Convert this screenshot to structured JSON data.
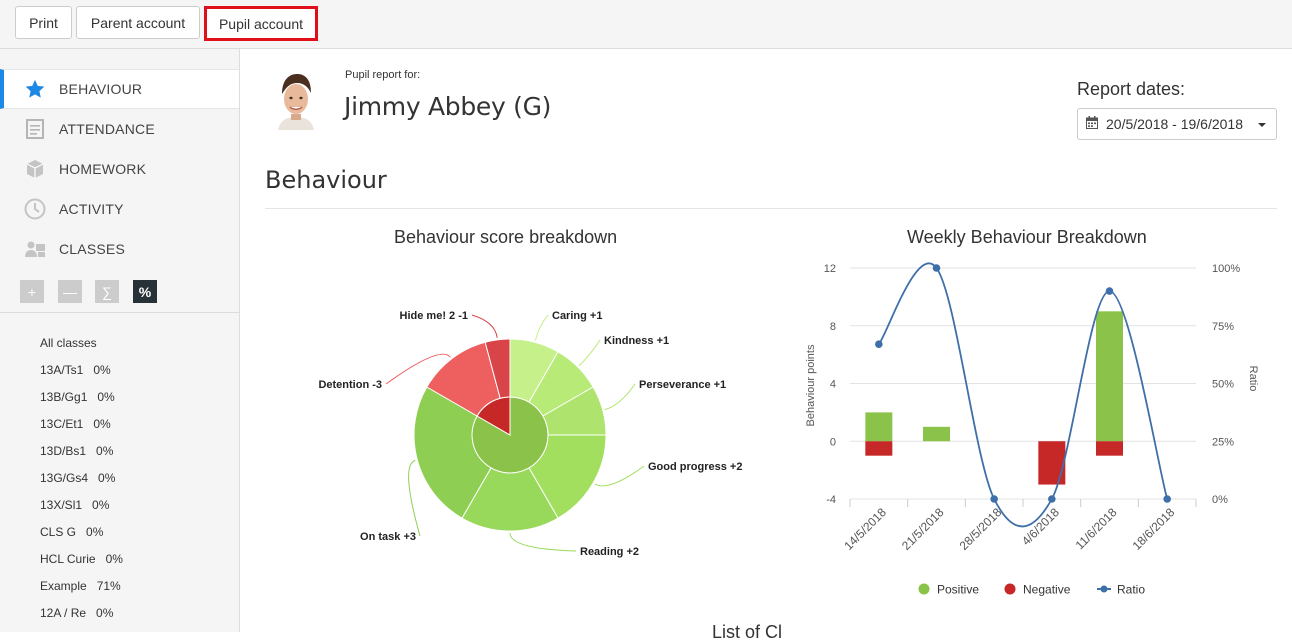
{
  "toolbar": {
    "print_label": "Print",
    "parent_label": "Parent account",
    "pupil_label": "Pupil account"
  },
  "sidebar": {
    "items": [
      {
        "label": "BEHAVIOUR",
        "icon": "star-icon",
        "active": true
      },
      {
        "label": "ATTENDANCE",
        "icon": "document-icon",
        "active": false
      },
      {
        "label": "HOMEWORK",
        "icon": "box-icon",
        "active": false
      },
      {
        "label": "ACTIVITY",
        "icon": "clock-icon",
        "active": false
      },
      {
        "label": "CLASSES",
        "icon": "people-icon",
        "active": false
      }
    ],
    "tools": [
      "+",
      "—",
      "∑",
      "%"
    ],
    "classes": [
      {
        "name": "All classes",
        "pct": ""
      },
      {
        "name": "13A/Ts1",
        "pct": "0%"
      },
      {
        "name": "13B/Gg1",
        "pct": "0%"
      },
      {
        "name": "13C/Et1",
        "pct": "0%"
      },
      {
        "name": "13D/Bs1",
        "pct": "0%"
      },
      {
        "name": "13G/Gs4",
        "pct": "0%"
      },
      {
        "name": "13X/Sl1",
        "pct": "0%"
      },
      {
        "name": "CLS G",
        "pct": "0%"
      },
      {
        "name": "HCL Curie",
        "pct": "0%"
      },
      {
        "name": "Example",
        "pct": "71%"
      },
      {
        "name": "12A / Re",
        "pct": "0%"
      }
    ]
  },
  "header": {
    "report_for": "Pupil report for:",
    "pupil_name": "Jimmy Abbey (G)",
    "report_dates_label": "Report dates:",
    "date_range": "20/5/2018 - 19/6/2018"
  },
  "section": {
    "title": "Behaviour",
    "footer_title": "List of Cl"
  },
  "colors": {
    "accent": "#1e88e5",
    "positive": "#8bc34a",
    "negative": "#c62828",
    "ratio": "#3f6fa8"
  },
  "chart_data": [
    {
      "type": "pie",
      "title": "Behaviour score breakdown",
      "inner": [
        {
          "name": "Positive",
          "value": 10,
          "color": "#8bc34a"
        },
        {
          "name": "Negative",
          "value": 2,
          "color": "#c62828"
        }
      ],
      "outer": [
        {
          "label": "Caring +1",
          "value": 1,
          "color": "#c5f08a"
        },
        {
          "label": "Kindness +1",
          "value": 1,
          "color": "#b8ea78"
        },
        {
          "label": "Perseverance +1",
          "value": 1,
          "color": "#aee46d"
        },
        {
          "label": "Good progress +2",
          "value": 2,
          "color": "#a3df5f"
        },
        {
          "label": "Reading +2",
          "value": 2,
          "color": "#98d85a"
        },
        {
          "label": "On task +3",
          "value": 3,
          "color": "#8ecf53"
        },
        {
          "label": "Detention -3",
          "value": 1.5,
          "color": "#ee5f60"
        },
        {
          "label": "Hide me! 2 -1",
          "value": 0.5,
          "color": "#d84447"
        }
      ]
    },
    {
      "type": "bar",
      "title": "Weekly Behaviour Breakdown",
      "categories": [
        "14/5/2018",
        "21/5/2018",
        "28/5/2018",
        "4/6/2018",
        "11/6/2018",
        "18/6/2018"
      ],
      "ylabel": "Behaviour points",
      "y2label": "Ratio",
      "ylim": [
        -4,
        12
      ],
      "yticks": [
        "12",
        "8",
        "4",
        "0",
        "-4"
      ],
      "y2ticks": [
        "100%",
        "75%",
        "50%",
        "25%",
        "0%"
      ],
      "series": [
        {
          "name": "Positive",
          "values": [
            2,
            1,
            0,
            0,
            9,
            0
          ]
        },
        {
          "name": "Negative",
          "values": [
            -1,
            0,
            0,
            -3,
            -1,
            0
          ]
        },
        {
          "name": "Ratio",
          "values": [
            67,
            100,
            0,
            0,
            90,
            0
          ]
        }
      ],
      "legend": "bottom"
    }
  ]
}
